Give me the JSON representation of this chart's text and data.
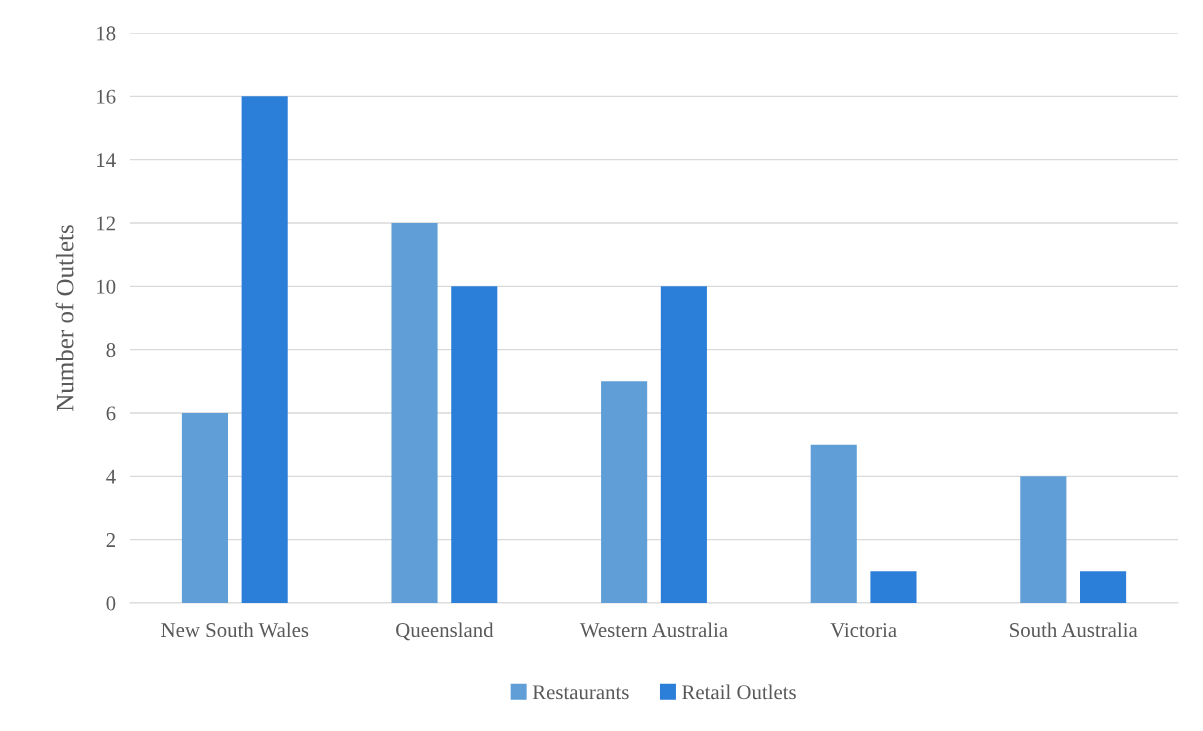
{
  "chart_data": {
    "type": "bar",
    "ylabel": "Number of Outlets",
    "categories": [
      "New South Wales",
      "Queensland",
      "Western Australia",
      "Victoria",
      "South Australia"
    ],
    "series": [
      {
        "name": "Restaurants",
        "color": "#5f9ed6",
        "values": [
          6,
          12,
          7,
          5,
          4
        ]
      },
      {
        "name": "Retail Outlets",
        "color": "#2b7fd8",
        "values": [
          16,
          10,
          10,
          1,
          1
        ]
      }
    ],
    "ylim": [
      0,
      18
    ],
    "yticks": [
      0,
      2,
      4,
      6,
      8,
      10,
      12,
      14,
      16,
      18
    ],
    "grid": "y",
    "legend": "bottom"
  }
}
